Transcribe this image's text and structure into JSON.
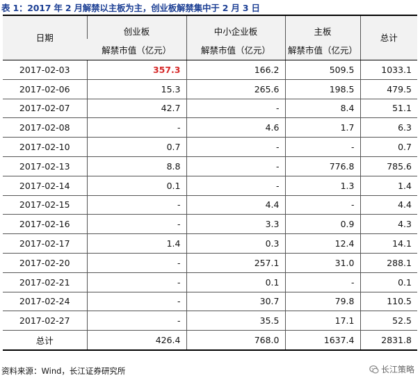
{
  "caption": "表 1：2017 年 2 月解禁以主板为主，创业板解禁集中于 2 月 3 日",
  "header": {
    "date": "日期",
    "cyb": "创业板",
    "zxb": "中小企业板",
    "zb": "主板",
    "total": "总计",
    "cyb_sub": "解禁市值（亿元）",
    "zxb_sub": "解禁市值（亿元）",
    "zb_sub": "解禁市值（亿元）"
  },
  "rows": [
    {
      "date": "2017-02-03",
      "cyb": "357.3",
      "zxb": "166.2",
      "zb": "509.5",
      "total": "1033.1"
    },
    {
      "date": "2017-02-06",
      "cyb": "15.3",
      "zxb": "265.6",
      "zb": "198.5",
      "total": "479.5"
    },
    {
      "date": "2017-02-07",
      "cyb": "42.7",
      "zxb": "-",
      "zb": "8.4",
      "total": "51.1"
    },
    {
      "date": "2017-02-08",
      "cyb": "-",
      "zxb": "4.6",
      "zb": "1.7",
      "total": "6.3"
    },
    {
      "date": "2017-02-10",
      "cyb": "0.7",
      "zxb": "-",
      "zb": "-",
      "total": "0.7"
    },
    {
      "date": "2017-02-13",
      "cyb": "8.8",
      "zxb": "-",
      "zb": "776.8",
      "total": "785.6"
    },
    {
      "date": "2017-02-14",
      "cyb": "0.1",
      "zxb": "-",
      "zb": "1.3",
      "total": "1.4"
    },
    {
      "date": "2017-02-15",
      "cyb": "-",
      "zxb": "4.4",
      "zb": "-",
      "total": "4.4"
    },
    {
      "date": "2017-02-16",
      "cyb": "-",
      "zxb": "3.3",
      "zb": "0.9",
      "total": "4.3"
    },
    {
      "date": "2017-02-17",
      "cyb": "1.4",
      "zxb": "0.3",
      "zb": "12.4",
      "total": "14.1"
    },
    {
      "date": "2017-02-20",
      "cyb": "-",
      "zxb": "257.1",
      "zb": "31.0",
      "total": "288.1"
    },
    {
      "date": "2017-02-21",
      "cyb": "-",
      "zxb": "0.1",
      "zb": "-",
      "total": "0.1"
    },
    {
      "date": "2017-02-24",
      "cyb": "-",
      "zxb": "30.7",
      "zb": "79.8",
      "total": "110.5"
    },
    {
      "date": "2017-02-27",
      "cyb": "-",
      "zxb": "35.5",
      "zb": "17.1",
      "total": "52.5"
    }
  ],
  "total_row": {
    "label": "总计",
    "cyb": "426.4",
    "zxb": "768.0",
    "zb": "1637.4",
    "total": "2831.8"
  },
  "source": "资料来源：Wind，长江证券研究所",
  "watermark": "长江策略",
  "colors": {
    "caption": "#1c3f94",
    "highlight": "#d62a2a",
    "header_bg": "#f2f2f2"
  }
}
